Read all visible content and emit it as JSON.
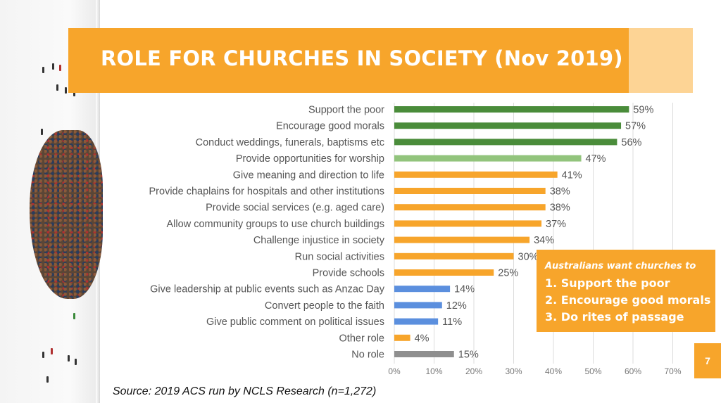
{
  "slide": {
    "title": "ROLE FOR CHURCHES IN SOCIETY (Nov 2019)",
    "source": "Source: 2019 ACS run by NCLS Research (n=1,272)",
    "page_number": "7"
  },
  "callout": {
    "heading": "Australians want churches to",
    "items": [
      "1. Support the poor",
      "2. Encourage good morals",
      "3. Do rites of passage"
    ]
  },
  "chart_data": {
    "type": "bar",
    "orientation": "horizontal",
    "categories": [
      "Support the poor",
      "Encourage good morals",
      "Conduct weddings, funerals, baptisms etc",
      "Provide opportunities for worship",
      "Give meaning and direction to life",
      "Provide chaplains for hospitals and other institutions",
      "Provide social services (e.g. aged care)",
      "Allow community groups to use church buildings",
      "Challenge injustice in society",
      "Run social activities",
      "Provide schools",
      "Give leadership at public events such as Anzac Day",
      "Convert people to the faith",
      "Give public comment on political issues",
      "Other role",
      "No role"
    ],
    "values": [
      59,
      57,
      56,
      47,
      41,
      38,
      38,
      37,
      34,
      30,
      25,
      14,
      12,
      11,
      4,
      15
    ],
    "data_labels": [
      "59%",
      "57%",
      "56%",
      "47%",
      "41%",
      "38%",
      "38%",
      "37%",
      "34%",
      "30%",
      "25%",
      "14%",
      "12%",
      "11%",
      "4%",
      "15%"
    ],
    "colors": [
      "#4a8c3a",
      "#4a8c3a",
      "#4a8c3a",
      "#92c47c",
      "#f7a52b",
      "#f7a52b",
      "#f7a52b",
      "#f7a52b",
      "#f7a52b",
      "#f7a52b",
      "#f7a52b",
      "#5b8fde",
      "#5b8fde",
      "#5b8fde",
      "#f7a52b",
      "#8f8f8f"
    ],
    "xlim": [
      0,
      70
    ],
    "xticks": [
      0,
      10,
      20,
      30,
      40,
      50,
      60,
      70
    ],
    "xtick_labels": [
      "0%",
      "10%",
      "20%",
      "30%",
      "40%",
      "50%",
      "60%",
      "70%"
    ],
    "grid": true,
    "title": "",
    "xlabel": "",
    "ylabel": ""
  }
}
